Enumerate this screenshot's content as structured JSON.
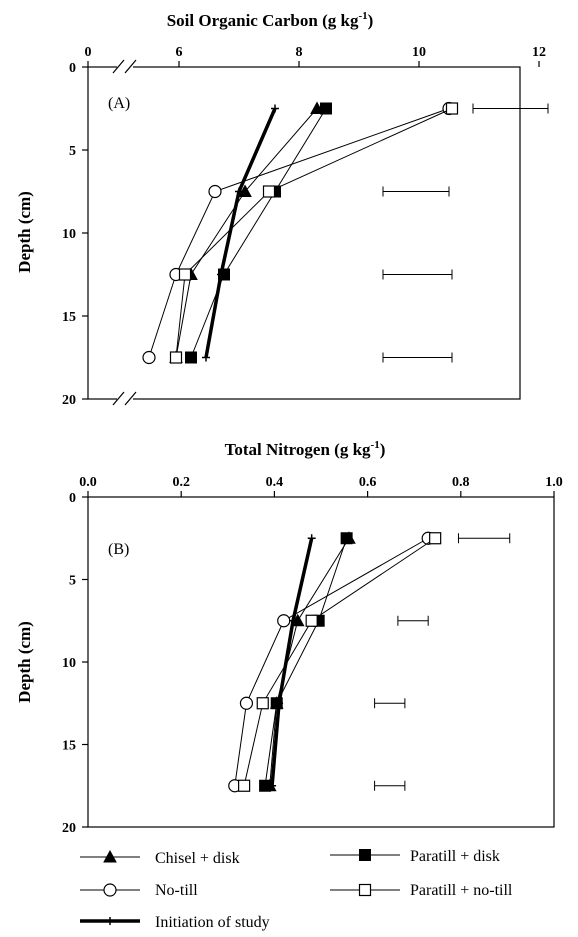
{
  "chart_data": [
    {
      "type": "line",
      "panel_label": "(A)",
      "title": "Soil Organic Carbon (g kg",
      "title_superscript": "-1",
      "title_close": ")",
      "xlabel": "Soil Organic Carbon (g kg-1)",
      "ylabel": "Depth (cm)",
      "xlim": [
        0,
        12
      ],
      "ylim": [
        20,
        0
      ],
      "axis_break": true,
      "x_ticks": [
        "0",
        "6",
        "8",
        "10",
        "12"
      ],
      "y_ticks": [
        "0",
        "5",
        "10",
        "15",
        "20"
      ],
      "grid": false,
      "series": [
        {
          "name": "Chisel + disk",
          "marker": "triangle",
          "x": [
            8.3,
            7.1,
            6.2,
            5.95
          ],
          "y": [
            2.5,
            7.5,
            12.5,
            17.5
          ]
        },
        {
          "name": "Paratill + disk",
          "marker": "square-filled",
          "x": [
            8.45,
            7.6,
            6.75,
            6.2
          ],
          "y": [
            2.5,
            7.5,
            12.5,
            17.5
          ]
        },
        {
          "name": "No-till",
          "marker": "circle",
          "x": [
            10.5,
            6.6,
            5.95,
            5.5
          ],
          "y": [
            2.5,
            7.5,
            12.5,
            17.5
          ]
        },
        {
          "name": "Paratill + no-till",
          "marker": "square-open",
          "x": [
            10.55,
            7.5,
            6.1,
            5.95
          ],
          "y": [
            2.5,
            7.5,
            12.5,
            17.5
          ]
        },
        {
          "name": "Initiation of study",
          "marker": "plus-thick",
          "x": [
            7.6,
            7.0,
            6.7,
            6.45
          ],
          "y": [
            2.5,
            7.5,
            12.5,
            17.5
          ]
        }
      ],
      "error_bars": [
        {
          "y": 2.5,
          "x_low": 10.9,
          "x_high": 12.15
        },
        {
          "y": 7.5,
          "x_low": 9.4,
          "x_high": 10.5
        },
        {
          "y": 12.5,
          "x_low": 9.4,
          "x_high": 10.55
        },
        {
          "y": 17.5,
          "x_low": 9.4,
          "x_high": 10.55
        }
      ]
    },
    {
      "type": "line",
      "panel_label": "(B)",
      "title": "Total Nitrogen (g kg",
      "title_superscript": "-1",
      "title_close": ")",
      "xlabel": "Total Nitrogen (g kg-1)",
      "ylabel": "Depth (cm)",
      "xlim": [
        0,
        1.0
      ],
      "ylim": [
        20,
        0
      ],
      "x_ticks": [
        "0.0",
        "0.2",
        "0.4",
        "0.6",
        "0.8",
        "1.0"
      ],
      "y_ticks": [
        "0",
        "5",
        "10",
        "15",
        "20"
      ],
      "grid": false,
      "series": [
        {
          "name": "Chisel + disk",
          "marker": "triangle",
          "x": [
            0.56,
            0.45,
            0.405,
            0.39
          ],
          "y": [
            2.5,
            7.5,
            12.5,
            17.5
          ]
        },
        {
          "name": "Paratill + disk",
          "marker": "square-filled",
          "x": [
            0.555,
            0.495,
            0.405,
            0.38
          ],
          "y": [
            2.5,
            7.5,
            12.5,
            17.5
          ]
        },
        {
          "name": "No-till",
          "marker": "circle",
          "x": [
            0.73,
            0.42,
            0.34,
            0.315
          ],
          "y": [
            2.5,
            7.5,
            12.5,
            17.5
          ]
        },
        {
          "name": "Paratill + no-till",
          "marker": "square-open",
          "x": [
            0.745,
            0.48,
            0.375,
            0.335
          ],
          "y": [
            2.5,
            7.5,
            12.5,
            17.5
          ]
        },
        {
          "name": "Initiation of study",
          "marker": "plus-thick",
          "x": [
            0.48,
            0.44,
            0.41,
            0.395
          ],
          "y": [
            2.5,
            7.5,
            12.5,
            17.5
          ]
        }
      ],
      "error_bars": [
        {
          "y": 2.5,
          "x_low": 0.795,
          "x_high": 0.905
        },
        {
          "y": 7.5,
          "x_low": 0.665,
          "x_high": 0.73
        },
        {
          "y": 12.5,
          "x_low": 0.615,
          "x_high": 0.68
        },
        {
          "y": 17.5,
          "x_low": 0.615,
          "x_high": 0.68
        }
      ]
    }
  ],
  "legend": {
    "placement": "bottom",
    "items": [
      {
        "label": "Chisel + disk",
        "marker": "triangle"
      },
      {
        "label": "Paratill + disk",
        "marker": "square-filled"
      },
      {
        "label": "No-till",
        "marker": "circle"
      },
      {
        "label": "Paratill + no-till",
        "marker": "square-open"
      },
      {
        "label": "Initiation of study",
        "marker": "plus-thick"
      }
    ]
  }
}
